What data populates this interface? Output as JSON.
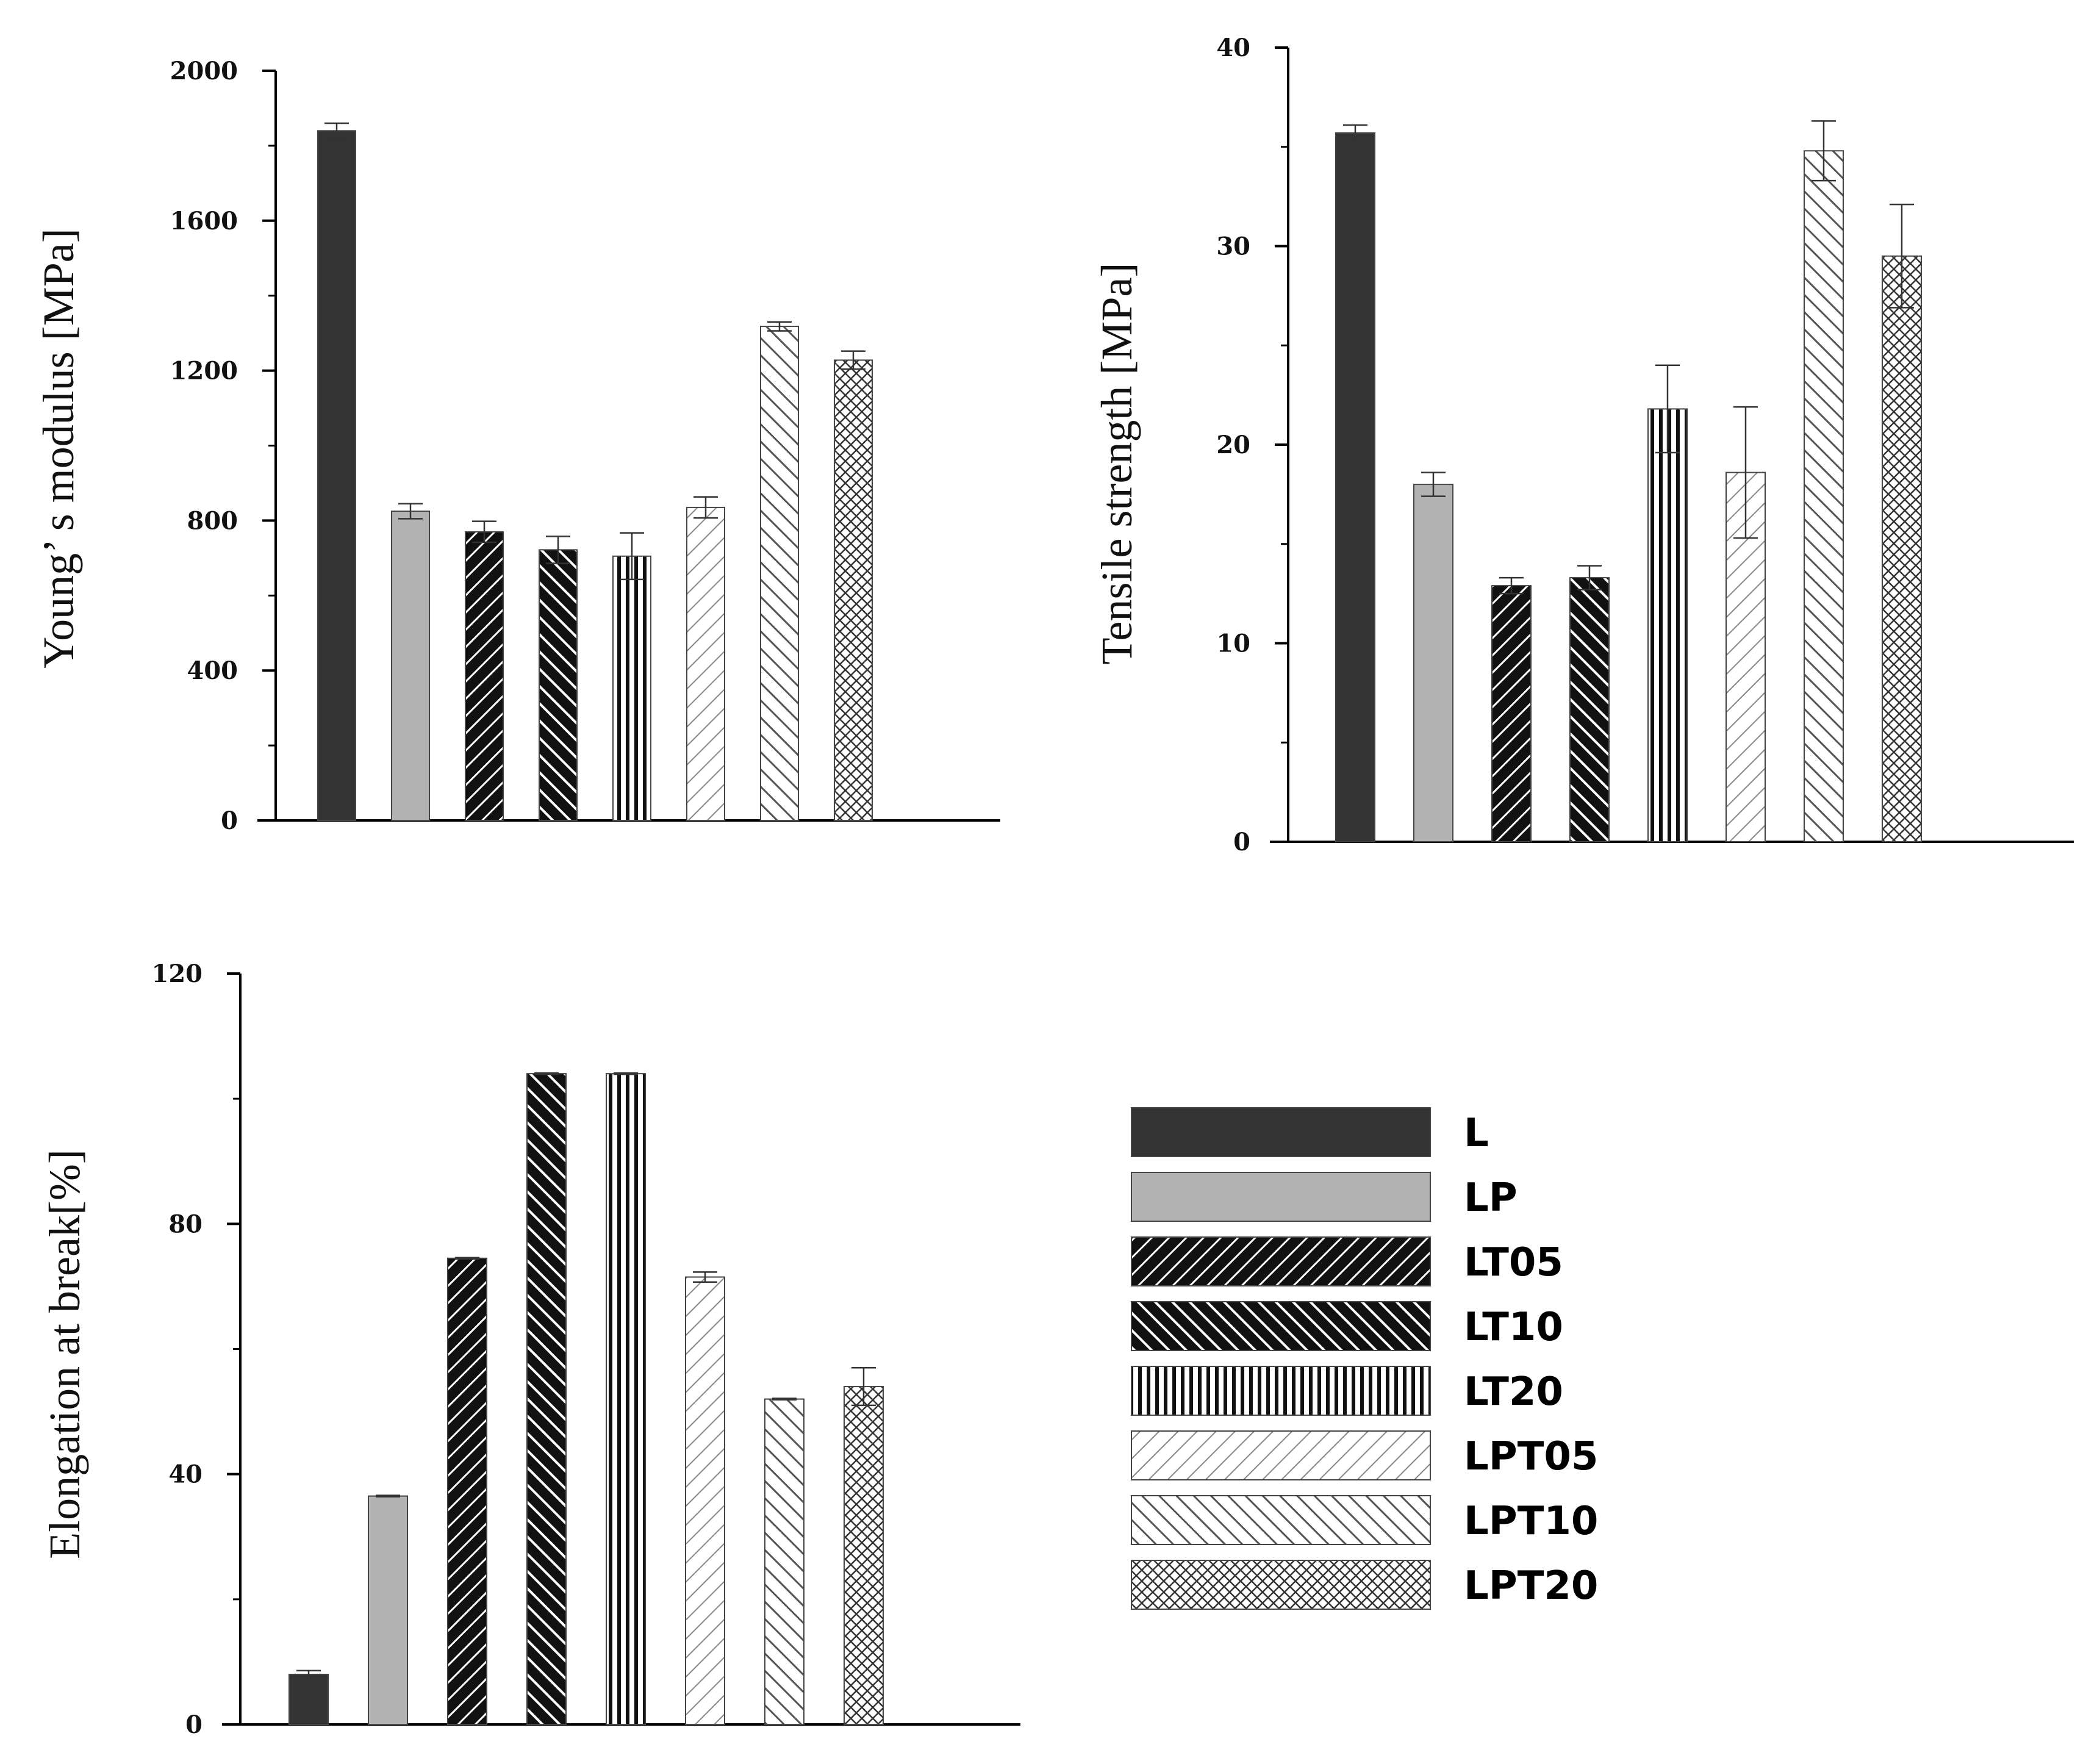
{
  "chart_data": [
    {
      "type": "bar",
      "panel": "top-left",
      "title": "",
      "xlabel": "",
      "ylabel": "Young’  s modulus [MPa]",
      "ylim": [
        0,
        2000
      ],
      "yticks": [
        0,
        400,
        800,
        1200,
        1600,
        2000
      ],
      "categories": [
        "L",
        "LP",
        "LT05",
        "LT10",
        "LT20",
        "LPT05",
        "LPT10",
        "LPT20"
      ],
      "values": [
        1840,
        825,
        770,
        722,
        705,
        835,
        1318,
        1228
      ],
      "errors": [
        20,
        20,
        28,
        36,
        62,
        28,
        12,
        24
      ]
    },
    {
      "type": "bar",
      "panel": "top-right",
      "title": "",
      "xlabel": "",
      "ylabel": "Tensile strength [MPa]",
      "ylim": [
        0,
        40
      ],
      "yticks": [
        0,
        10,
        20,
        30,
        40
      ],
      "categories": [
        "L",
        "LP",
        "LT05",
        "LT10",
        "LT20",
        "LPT05",
        "LPT10",
        "LPT20"
      ],
      "values": [
        35.7,
        18.0,
        12.9,
        13.3,
        21.8,
        18.6,
        34.8,
        29.5
      ],
      "errors": [
        0.4,
        0.6,
        0.4,
        0.6,
        2.2,
        3.3,
        1.5,
        2.6
      ]
    },
    {
      "type": "bar",
      "panel": "bottom-left",
      "title": "",
      "xlabel": "",
      "ylabel": "Elongation at break[%]",
      "ylim": [
        0,
        120
      ],
      "yticks": [
        0,
        40,
        80,
        120
      ],
      "categories": [
        "L",
        "LP",
        "LT05",
        "LT10",
        "LT20",
        "LPT05",
        "LPT10",
        "LPT20"
      ],
      "values": [
        8,
        36.5,
        74.5,
        104,
        104,
        71.5,
        52,
        54
      ],
      "errors": [
        0.6,
        0.1,
        0.1,
        0.1,
        0.1,
        0.8,
        0.1,
        3
      ]
    }
  ],
  "legend": {
    "position": "bottom-right",
    "entries": [
      "L",
      "LP",
      "LT05",
      "LT10",
      "LT20",
      "LPT05",
      "LPT10",
      "LPT20"
    ]
  }
}
